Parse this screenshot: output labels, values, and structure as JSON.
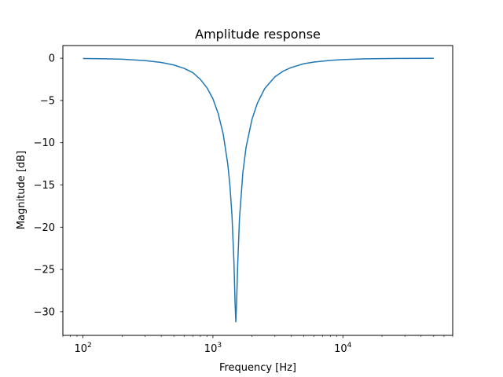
{
  "chart_data": {
    "type": "line",
    "title": "Amplitude response",
    "xlabel": "Frequency [Hz]",
    "ylabel": "Magnitude [dB]",
    "xscale": "log",
    "xlim": [
      70,
      70000
    ],
    "ylim": [
      -32.8,
      1.5
    ],
    "grid": false,
    "x_ticks": [
      {
        "value": 100,
        "base": "10",
        "exp": "2"
      },
      {
        "value": 1000,
        "base": "10",
        "exp": "3"
      },
      {
        "value": 10000,
        "base": "10",
        "exp": "4"
      }
    ],
    "y_ticks": [
      {
        "value": 0,
        "label": "0"
      },
      {
        "value": -5,
        "label": "−5"
      },
      {
        "value": -10,
        "label": "−10"
      },
      {
        "value": -15,
        "label": "−15"
      },
      {
        "value": -20,
        "label": "−20"
      },
      {
        "value": -25,
        "label": "−25"
      },
      {
        "value": -30,
        "label": "−30"
      }
    ],
    "series": [
      {
        "color": "#1f77b4",
        "x": [
          100,
          150,
          200,
          300,
          400,
          500,
          600,
          700,
          800,
          900,
          1000,
          1100,
          1200,
          1300,
          1350,
          1400,
          1450,
          1480,
          1500,
          1520,
          1550,
          1600,
          1700,
          1800,
          2000,
          2200,
          2500,
          3000,
          3500,
          4000,
          5000,
          6000,
          8000,
          10000,
          15000,
          20000,
          30000,
          50000
        ],
        "y": [
          -0.03,
          -0.07,
          -0.12,
          -0.28,
          -0.5,
          -0.8,
          -1.2,
          -1.7,
          -2.5,
          -3.5,
          -4.8,
          -6.6,
          -9.0,
          -12.5,
          -15.0,
          -18.5,
          -24.0,
          -29.0,
          -31.2,
          -29.0,
          -24.5,
          -19.0,
          -13.5,
          -10.5,
          -7.2,
          -5.3,
          -3.6,
          -2.2,
          -1.5,
          -1.1,
          -0.65,
          -0.45,
          -0.25,
          -0.16,
          -0.07,
          -0.04,
          -0.02,
          -0.01
        ]
      }
    ]
  }
}
